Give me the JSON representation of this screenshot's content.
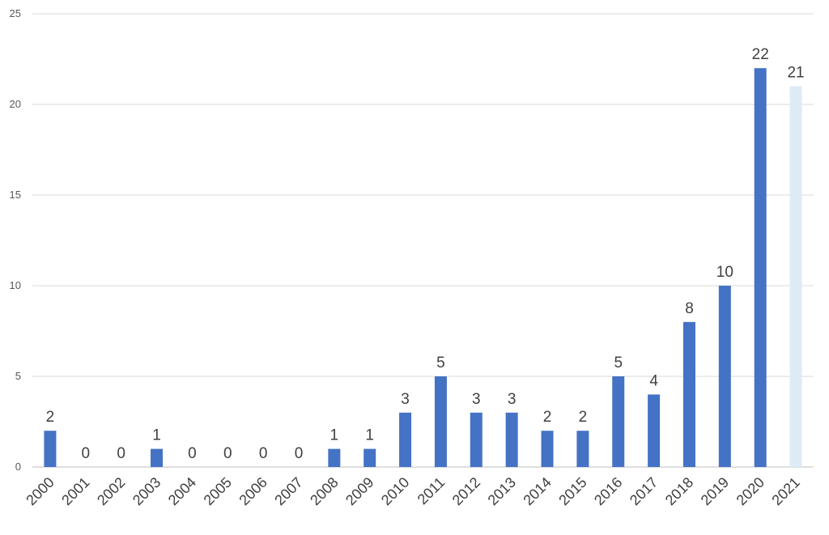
{
  "chart_data": {
    "type": "bar",
    "title": "",
    "xlabel": "",
    "ylabel": "",
    "categories": [
      "2000",
      "2001",
      "2002",
      "2003",
      "2004",
      "2005",
      "2006",
      "2007",
      "2008",
      "2009",
      "2010",
      "2011",
      "2012",
      "2013",
      "2014",
      "2015",
      "2016",
      "2017",
      "2018",
      "2019",
      "2020",
      "2021"
    ],
    "values": [
      2,
      0,
      0,
      1,
      0,
      0,
      0,
      0,
      1,
      1,
      3,
      5,
      3,
      3,
      2,
      2,
      5,
      4,
      8,
      10,
      22,
      21
    ],
    "ylim": [
      0,
      25
    ],
    "yticks": [
      "0",
      "5",
      "10",
      "15",
      "20",
      "25"
    ],
    "data_labels": [
      "2",
      "0",
      "0",
      "1",
      "0",
      "0",
      "0",
      "0",
      "1",
      "1",
      "3",
      "5",
      "3",
      "3",
      "2",
      "2",
      "5",
      "4",
      "8",
      "10",
      "22",
      "21"
    ],
    "grid": true,
    "legend": "none",
    "colors": {
      "bar": "#4472c4",
      "highlight_bar": "#ddebf7",
      "highlight_category": "2021"
    }
  }
}
